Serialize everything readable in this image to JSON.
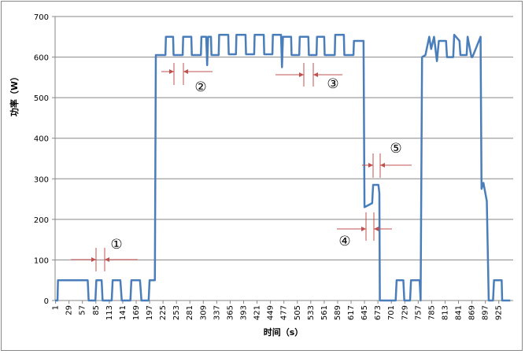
{
  "chart_data": {
    "type": "line",
    "y_label": "功率（W）",
    "x_label": "时间（s）",
    "annotations": [
      "①",
      "②",
      "③",
      "④",
      "⑤"
    ],
    "x": [
      0,
      5,
      6,
      68,
      70,
      84,
      86,
      97,
      99,
      118,
      120,
      136,
      139,
      157,
      159,
      177,
      180,
      195,
      197,
      208,
      210,
      230,
      231,
      246,
      247,
      266,
      267,
      284,
      285,
      304,
      305,
      315,
      317,
      319,
      325,
      326,
      341,
      342,
      361,
      362,
      377,
      378,
      397,
      398,
      415,
      416,
      435,
      436,
      453,
      454,
      471,
      473,
      475,
      492,
      493,
      509,
      510,
      528,
      529,
      545,
      546,
      561,
      562,
      583,
      584,
      602,
      603,
      622,
      623,
      643,
      645,
      661,
      663,
      674,
      676,
      677,
      710,
      712,
      726,
      728,
      740,
      742,
      760,
      762,
      765,
      772,
      780,
      784,
      790,
      796,
      800,
      815,
      817,
      830,
      832,
      843,
      845,
      858,
      860,
      868,
      870,
      887,
      889,
      893,
      900,
      904,
      913,
      915,
      931,
      932,
      949
    ],
    "series": [
      {
        "color": "#4a7ebb",
        "values": [
          0,
          0,
          50,
          50,
          0,
          0,
          50,
          50,
          0,
          0,
          50,
          50,
          0,
          0,
          50,
          50,
          0,
          0,
          50,
          50,
          605,
          605,
          650,
          650,
          605,
          605,
          650,
          650,
          605,
          605,
          650,
          650,
          580,
          650,
          650,
          605,
          605,
          655,
          655,
          607,
          607,
          655,
          655,
          607,
          607,
          655,
          655,
          607,
          607,
          655,
          655,
          575,
          650,
          650,
          605,
          605,
          650,
          650,
          605,
          605,
          650,
          650,
          605,
          605,
          655,
          655,
          605,
          605,
          640,
          640,
          230,
          240,
          285,
          285,
          265,
          0,
          0,
          50,
          50,
          0,
          0,
          50,
          50,
          0,
          600,
          605,
          650,
          620,
          650,
          590,
          640,
          640,
          600,
          600,
          655,
          640,
          605,
          605,
          650,
          600,
          600,
          650,
          275,
          290,
          245,
          0,
          0,
          50,
          50,
          0,
          0
        ]
      }
    ],
    "xlim": [
      0,
      955
    ],
    "ylim": [
      0,
      700
    ],
    "xticks": [
      1,
      29,
      57,
      85,
      113,
      141,
      169,
      197,
      225,
      253,
      281,
      309,
      337,
      365,
      393,
      421,
      449,
      477,
      505,
      533,
      561,
      589,
      617,
      645,
      673,
      701,
      729,
      757,
      785,
      813,
      841,
      869,
      897,
      925
    ],
    "yticks": [
      0,
      100,
      200,
      300,
      400,
      500,
      600,
      700
    ],
    "grid": true
  }
}
